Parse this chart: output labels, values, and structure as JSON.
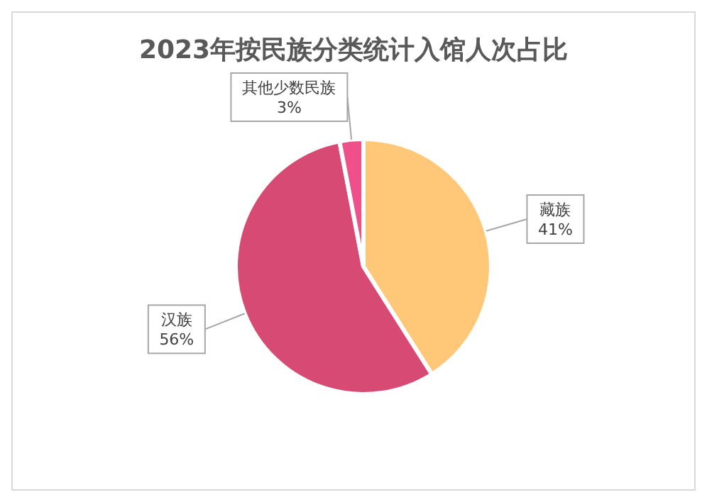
{
  "chart_data": {
    "type": "pie",
    "title": "2023年按民族分类统计入馆人次占比",
    "categories": [
      "藏族",
      "汉族",
      "其他少数民族"
    ],
    "values": [
      41,
      56,
      3
    ],
    "value_labels": [
      "41%",
      "56%",
      "3%"
    ],
    "colors": [
      "#ffc878",
      "#d64a73",
      "#f0508a"
    ],
    "legend": false
  }
}
